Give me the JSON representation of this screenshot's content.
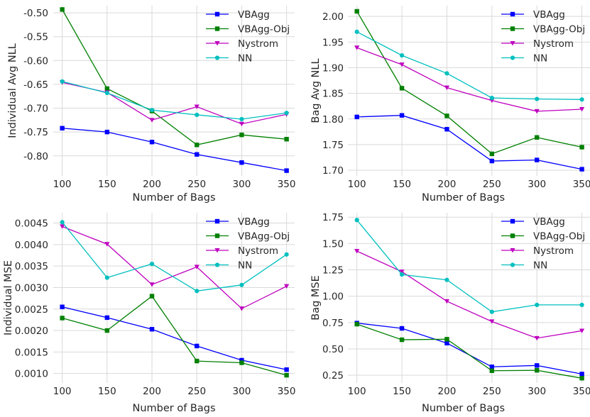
{
  "chart_data": [
    {
      "type": "line",
      "xlabel": "Number of Bags",
      "ylabel": "Individual Avg NLL",
      "x": [
        100,
        150,
        200,
        250,
        300,
        350
      ],
      "xticks": [
        "100",
        "150",
        "200",
        "250",
        "300",
        "350"
      ],
      "xlim": [
        90,
        359
      ],
      "yticks": [
        "-0.50",
        "-0.55",
        "-0.60",
        "-0.65",
        "-0.70",
        "-0.75",
        "-0.80"
      ],
      "ytick_values": [
        -0.5,
        -0.55,
        -0.6,
        -0.65,
        -0.7,
        -0.75,
        -0.8
      ],
      "ylim": [
        -0.842,
        -0.485
      ],
      "grid": true,
      "legend": "top-right",
      "series": [
        {
          "name": "VBAgg",
          "color": "#0000ff",
          "marker": "square",
          "values": [
            -0.742,
            -0.75,
            -0.771,
            -0.797,
            -0.814,
            -0.831
          ]
        },
        {
          "name": "VBAgg-Obj",
          "color": "#008000",
          "marker": "square",
          "values": [
            -0.493,
            -0.659,
            -0.706,
            -0.777,
            -0.756,
            -0.765
          ]
        },
        {
          "name": "Nystrom",
          "color": "#bf00bf",
          "marker": "triangle",
          "values": [
            -0.646,
            -0.667,
            -0.725,
            -0.697,
            -0.733,
            -0.713
          ]
        },
        {
          "name": "NN",
          "color": "#00bfbf",
          "marker": "circle",
          "values": [
            -0.644,
            -0.668,
            -0.704,
            -0.714,
            -0.723,
            -0.71
          ]
        }
      ]
    },
    {
      "type": "line",
      "xlabel": "Number of Bags",
      "ylabel": "Bag Avg NLL",
      "x": [
        100,
        150,
        200,
        250,
        300,
        350
      ],
      "xticks": [
        "100",
        "150",
        "200",
        "250",
        "300",
        "350"
      ],
      "xlim": [
        90,
        359
      ],
      "yticks": [
        "2.00",
        "1.95",
        "1.90",
        "1.85",
        "1.80",
        "1.75",
        "1.70"
      ],
      "ytick_values": [
        2.0,
        1.95,
        1.9,
        1.85,
        1.8,
        1.75,
        1.7
      ],
      "ylim": [
        1.689,
        2.021
      ],
      "grid": true,
      "legend": "top-right",
      "series": [
        {
          "name": "VBAgg",
          "color": "#0000ff",
          "marker": "square",
          "values": [
            1.804,
            1.807,
            1.78,
            1.718,
            1.72,
            1.702
          ]
        },
        {
          "name": "VBAgg-Obj",
          "color": "#008000",
          "marker": "square",
          "values": [
            2.01,
            1.86,
            1.806,
            1.732,
            1.764,
            1.745
          ]
        },
        {
          "name": "Nystrom",
          "color": "#bf00bf",
          "marker": "triangle",
          "values": [
            1.939,
            1.906,
            1.861,
            1.836,
            1.815,
            1.819
          ]
        },
        {
          "name": "NN",
          "color": "#00bfbf",
          "marker": "circle",
          "values": [
            1.97,
            1.924,
            1.889,
            1.841,
            1.839,
            1.838
          ]
        }
      ]
    },
    {
      "type": "line",
      "xlabel": "Number of Bags",
      "ylabel": "Individual MSE",
      "x": [
        100,
        150,
        200,
        250,
        300,
        350
      ],
      "xticks": [
        "100",
        "150",
        "200",
        "250",
        "300",
        "350"
      ],
      "xlim": [
        90,
        359
      ],
      "yticks": [
        "0.0045",
        "0.0040",
        "0.0035",
        "0.0030",
        "0.0025",
        "0.0020",
        "0.0015",
        "0.0010"
      ],
      "ytick_values": [
        0.0045,
        0.004,
        0.0035,
        0.003,
        0.0025,
        0.002,
        0.0015,
        0.001
      ],
      "ylim": [
        0.00078,
        0.00474
      ],
      "grid": true,
      "legend": "top-right",
      "series": [
        {
          "name": "VBAgg",
          "color": "#0000ff",
          "marker": "square",
          "values": [
            0.00255,
            0.0023,
            0.00203,
            0.00164,
            0.00131,
            0.00109
          ]
        },
        {
          "name": "VBAgg-Obj",
          "color": "#008000",
          "marker": "square",
          "values": [
            0.00229,
            0.002,
            0.0028,
            0.00129,
            0.00125,
            0.00096
          ]
        },
        {
          "name": "Nystrom",
          "color": "#bf00bf",
          "marker": "triangle",
          "values": [
            0.00442,
            0.00401,
            0.00307,
            0.00348,
            0.00251,
            0.00303
          ]
        },
        {
          "name": "NN",
          "color": "#00bfbf",
          "marker": "circle",
          "values": [
            0.00452,
            0.00323,
            0.00355,
            0.00292,
            0.00306,
            0.00377
          ]
        }
      ]
    },
    {
      "type": "line",
      "xlabel": "Number of Bags",
      "ylabel": "Bag MSE",
      "x": [
        100,
        150,
        200,
        250,
        300,
        350
      ],
      "xticks": [
        "100",
        "150",
        "200",
        "250",
        "300",
        "350"
      ],
      "xlim": [
        90,
        359
      ],
      "yticks": [
        "1.75",
        "1.50",
        "1.25",
        "1.00",
        "0.75",
        "0.50",
        "0.25"
      ],
      "ytick_values": [
        1.75,
        1.5,
        1.25,
        1.0,
        0.75,
        0.5,
        0.25
      ],
      "ylim": [
        0.177,
        1.792
      ],
      "grid": true,
      "legend": "top-right",
      "series": [
        {
          "name": "VBAgg",
          "color": "#0000ff",
          "marker": "square",
          "values": [
            0.745,
            0.695,
            0.555,
            0.33,
            0.343,
            0.262
          ]
        },
        {
          "name": "VBAgg-Obj",
          "color": "#008000",
          "marker": "square",
          "values": [
            0.735,
            0.587,
            0.592,
            0.293,
            0.297,
            0.222
          ]
        },
        {
          "name": "Nystrom",
          "color": "#bf00bf",
          "marker": "triangle",
          "values": [
            1.428,
            1.233,
            0.952,
            0.76,
            0.602,
            0.672
          ]
        },
        {
          "name": "NN",
          "color": "#00bfbf",
          "marker": "circle",
          "values": [
            1.723,
            1.206,
            1.155,
            0.852,
            0.918,
            0.918
          ]
        }
      ]
    }
  ]
}
